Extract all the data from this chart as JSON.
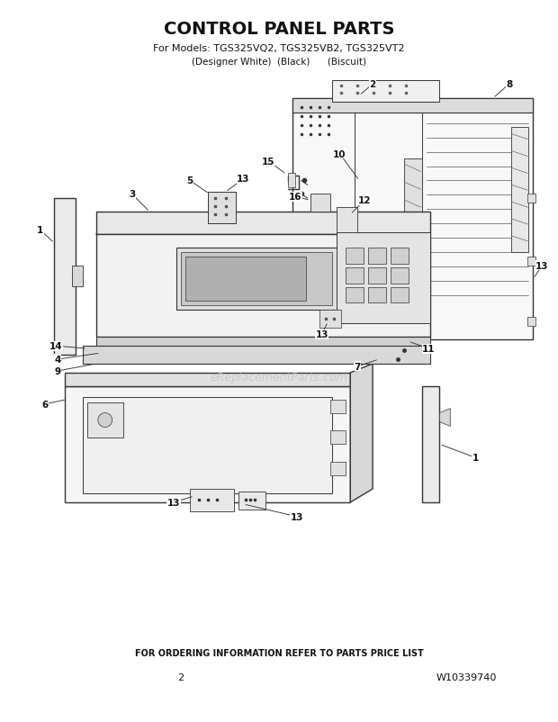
{
  "title_line1": "CONTROL PANEL PARTS",
  "title_line2": "For Models: TGS325VQ2, TGS325VB2, TGS325VT2",
  "title_line3": "(Designer White)  (Black)      (Biscuit)",
  "footer_text": "FOR ORDERING INFORMATION REFER TO PARTS PRICE LIST",
  "page_number": "2",
  "part_number": "W10339740",
  "watermark": "eReplacementParts.com",
  "bg_color": "#ffffff",
  "line_color": "#333333",
  "label_color": "#111111",
  "fig_width": 6.2,
  "fig_height": 8.03,
  "dpi": 100
}
